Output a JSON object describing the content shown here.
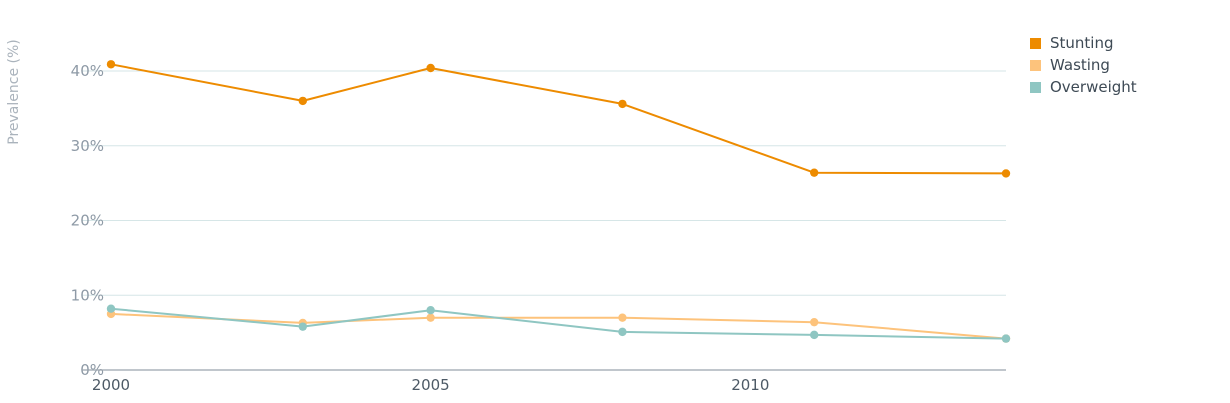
{
  "chart_data": {
    "type": "line",
    "ylabel": "Prevalence (%)",
    "xlim": [
      2000,
      2014
    ],
    "ylim": [
      0,
      40
    ],
    "y_ticks": [
      {
        "value": 0,
        "label": "0%"
      },
      {
        "value": 10,
        "label": "10%"
      },
      {
        "value": 20,
        "label": "20%"
      },
      {
        "value": 30,
        "label": "30%"
      },
      {
        "value": 40,
        "label": "40%"
      }
    ],
    "x_ticks": [
      {
        "value": 2000,
        "label": "2000"
      },
      {
        "value": 2005,
        "label": "2005"
      },
      {
        "value": 2010,
        "label": "2010"
      }
    ],
    "grid": "horizontal",
    "legend_position": "top-right",
    "series": [
      {
        "name": "Stunting",
        "color": "#ed8b00",
        "x": [
          2000,
          2003,
          2005,
          2008,
          2011,
          2014
        ],
        "values": [
          40.9,
          36.0,
          40.4,
          35.6,
          26.4,
          26.3
        ]
      },
      {
        "name": "Wasting",
        "color": "#fdc37c",
        "x": [
          2000,
          2003,
          2005,
          2008,
          2011,
          2014
        ],
        "values": [
          7.5,
          6.3,
          7.0,
          7.0,
          6.4,
          4.2
        ]
      },
      {
        "name": "Overweight",
        "color": "#8fc6c2",
        "x": [
          2000,
          2003,
          2005,
          2008,
          2011,
          2014
        ],
        "values": [
          8.2,
          5.8,
          8.0,
          5.1,
          4.7,
          4.2
        ]
      }
    ]
  }
}
